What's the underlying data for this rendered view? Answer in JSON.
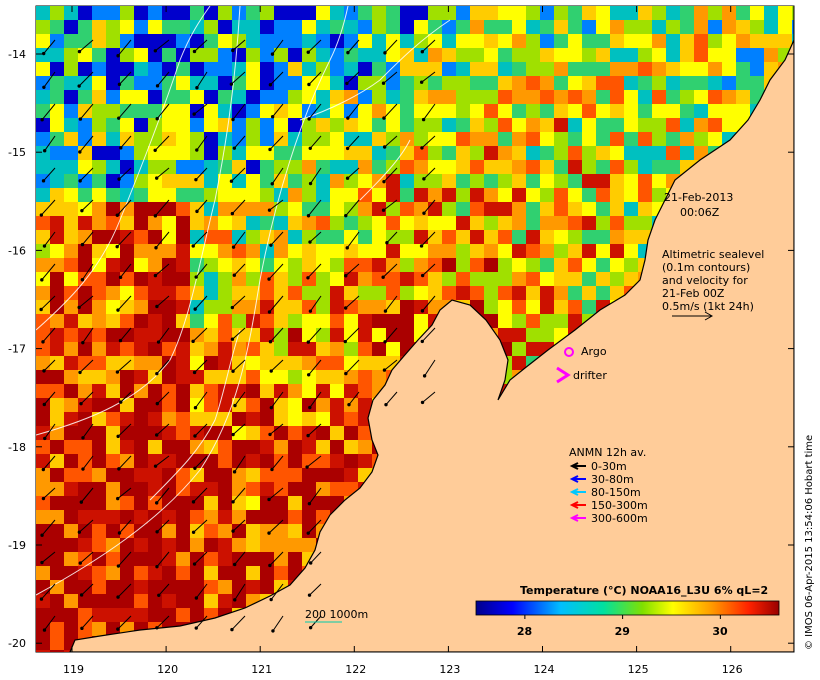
{
  "map": {
    "lat_labels": [
      "-14",
      "-15",
      "-16",
      "-17",
      "-18",
      "-19",
      "-20"
    ],
    "lon_labels": [
      "119",
      "120",
      "121",
      "122",
      "123",
      "124",
      "125",
      "126"
    ],
    "lat_values": [
      -14,
      -15,
      -16,
      -17,
      -18,
      -19,
      -20
    ],
    "lon_values": [
      119,
      120,
      121,
      122,
      123,
      124,
      125,
      126
    ]
  },
  "annotation": {
    "date": "21-Feb-2013",
    "time": "00:06Z",
    "altimetric": [
      "Altimetric sealevel",
      "(0.1m contours)",
      "and velocity for",
      "21-Feb 00Z",
      "0.5m/s (1kt 24h)"
    ]
  },
  "markers": {
    "argo_label": "Argo",
    "drifter_label": "drifter"
  },
  "legend": {
    "title": "ANMN 12h av.",
    "items": [
      {
        "label": "0-30m",
        "color": "#000000"
      },
      {
        "label": "30-80m",
        "color": "#0000ff"
      },
      {
        "label": "80-150m",
        "color": "#00c8ff"
      },
      {
        "label": "150-300m",
        "color": "#ff0000"
      },
      {
        "label": "300-600m",
        "color": "#ff00ff"
      }
    ]
  },
  "bathymetry_label": "200  1000m",
  "colorbar": {
    "title": "Temperature (°C) NOAA16_L3U 6% qL=2",
    "ticks": [
      "28",
      "29",
      "30"
    ],
    "tick_values": [
      28,
      29,
      30
    ],
    "range": [
      27.5,
      30.6
    ]
  },
  "credit": "© IMOS 06-Apr-2015 13:54:06 Hobart time",
  "colors": {
    "land": "#ffcc99",
    "water_hot": "#aa0000"
  }
}
